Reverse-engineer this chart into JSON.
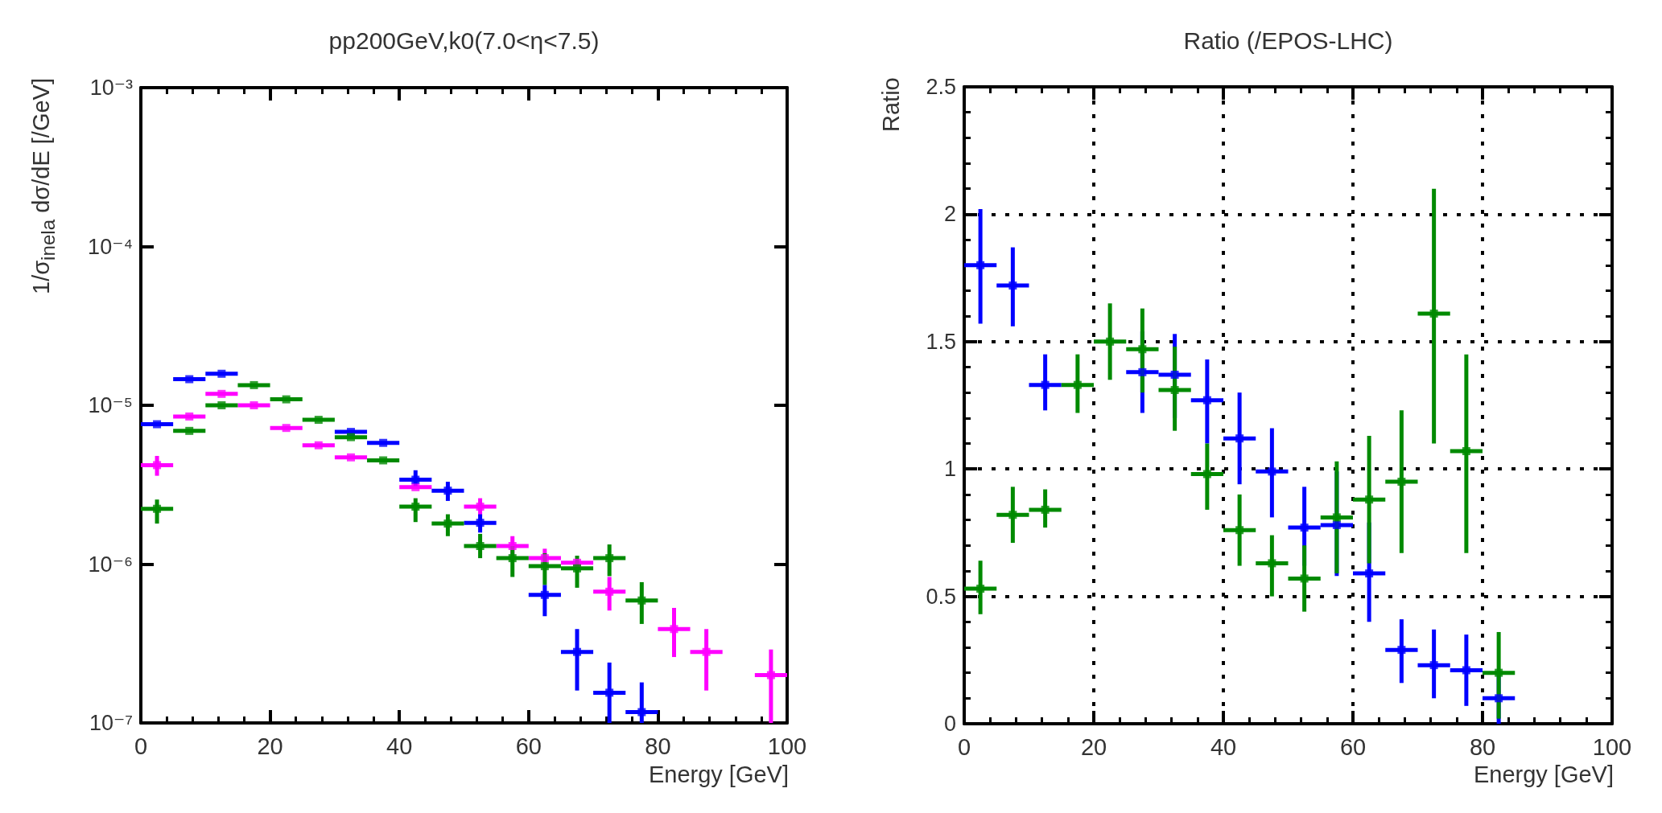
{
  "chart_data": [
    {
      "type": "scatter",
      "title": "pp200GeV,k0(7.0<η<7.5)",
      "xlabel": "Energy [GeV]",
      "ylabel": "1/σ$_{inela}$ dσ/dE [/GeV]",
      "log": true,
      "x": [
        2.5,
        7.5,
        12.5,
        17.5,
        22.5,
        27.5,
        32.5,
        37.5,
        42.5,
        47.5,
        52.5,
        57.5,
        62.5,
        67.5,
        72.5,
        77.5,
        82.5,
        87.5,
        92.5,
        97.5
      ],
      "xlim": [
        0,
        100
      ],
      "xticks": [
        0,
        20,
        40,
        60,
        80,
        100
      ],
      "ylim": [
        1e-07,
        0.001
      ],
      "yticks": [
        {
          "value": 1e-07,
          "label": "10⁻⁷"
        },
        {
          "value": 1e-06,
          "label": "10⁻⁶"
        },
        {
          "value": 1e-05,
          "label": "10⁻⁵"
        },
        {
          "value": 0.0001,
          "label": "10⁻⁴"
        },
        {
          "value": 0.001,
          "label": "10⁻³"
        }
      ],
      "series": [
        {
          "color": "#ff00ff",
          "xerrors": [
            2.5,
            2.5,
            2.5,
            2.5,
            2.5,
            2.5,
            2.5,
            null,
            2.5,
            null,
            2.5,
            2.5,
            2.5,
            2.5,
            2.5,
            null,
            2.5,
            2.5,
            null,
            2.5
          ],
          "values": [
            4.2e-06,
            8.5e-06,
            1.18e-05,
            1e-05,
            7.2e-06,
            5.6e-06,
            4.7e-06,
            null,
            3.05e-06,
            null,
            2.3e-06,
            1.3e-06,
            1.09e-06,
            1.02e-06,
            6.7e-07,
            null,
            3.9e-07,
            2.8e-07,
            null,
            2e-07
          ],
          "errors": [
            [
              3.6e-06,
              4.8e-06
            ],
            null,
            null,
            null,
            null,
            null,
            null,
            null,
            null,
            null,
            [
              2e-06,
              2.6e-06
            ],
            [
              1.1e-06,
              1.5e-06
            ],
            [
              9.5e-07,
              1.25e-06
            ],
            null,
            [
              5.1e-07,
              8.3e-07
            ],
            null,
            [
              2.6e-07,
              5.3e-07
            ],
            [
              1.6e-07,
              3.9e-07
            ],
            null,
            [
              1e-07,
              2.9e-07
            ]
          ]
        },
        {
          "color": "#0000ff",
          "xerrors": [
            2.5,
            2.5,
            2.5,
            null,
            null,
            null,
            2.5,
            2.5,
            2.5,
            2.5,
            2.5,
            null,
            2.5,
            2.5,
            2.5,
            2.5,
            null,
            null,
            null,
            null
          ],
          "values": [
            7.6e-06,
            1.46e-05,
            1.58e-05,
            null,
            null,
            null,
            6.8e-06,
            5.8e-06,
            3.4e-06,
            2.9e-06,
            1.82e-06,
            null,
            6.4e-07,
            2.8e-07,
            1.55e-07,
            1.17e-07,
            null,
            null,
            null,
            null
          ],
          "errors": [
            null,
            null,
            null,
            null,
            null,
            null,
            null,
            null,
            [
              3.1e-06,
              3.9e-06
            ],
            [
              2.5e-06,
              3.3e-06
            ],
            [
              1.58e-06,
              2.06e-06
            ],
            null,
            [
              4.7e-07,
              7.4e-07
            ],
            [
              1.6e-07,
              3.9e-07
            ],
            [
              1e-07,
              2.4e-07
            ],
            [
              1e-07,
              1.8e-07
            ],
            null,
            null,
            null,
            null
          ]
        },
        {
          "color": "#008a00",
          "xerrors": [
            2.5,
            2.5,
            2.5,
            2.5,
            2.5,
            2.5,
            2.5,
            2.5,
            2.5,
            2.5,
            2.5,
            2.5,
            2.5,
            2.5,
            2.5,
            2.5,
            null,
            null,
            null,
            null
          ],
          "values": [
            2.23e-06,
            6.9e-06,
            1e-05,
            1.34e-05,
            1.09e-05,
            8.1e-06,
            6.3e-06,
            4.5e-06,
            2.3e-06,
            1.8e-06,
            1.3e-06,
            1.09e-06,
            9.7e-07,
            9.4e-07,
            1.09e-06,
            5.9e-07,
            null,
            null,
            null,
            null
          ],
          "errors": [
            [
              1.8e-06,
              2.55e-06
            ],
            null,
            null,
            null,
            null,
            null,
            null,
            null,
            [
              1.84e-06,
              2.6e-06
            ],
            [
              1.5e-06,
              2.06e-06
            ],
            [
              1.09e-06,
              1.55e-06
            ],
            [
              8.3e-07,
              1.3e-06
            ],
            [
              7.4e-07,
              1.17e-06
            ],
            [
              7.1e-07,
              1.13e-06
            ],
            [
              8.4e-07,
              1.33e-06
            ],
            [
              4.2e-07,
              7.7e-07
            ],
            null,
            null,
            null,
            null
          ]
        }
      ]
    },
    {
      "type": "scatter",
      "title": "Ratio (/EPOS-LHC)",
      "xlabel": "Energy [GeV]",
      "ylabel": "Ratio",
      "grid": true,
      "x": [
        2.5,
        7.5,
        12.5,
        17.5,
        22.5,
        27.5,
        32.5,
        37.5,
        42.5,
        47.5,
        52.5,
        57.5,
        62.5,
        67.5,
        72.5,
        77.5,
        82.5
      ],
      "xlim": [
        0,
        100
      ],
      "xticks": [
        0,
        20,
        40,
        60,
        80,
        100
      ],
      "ylim": [
        0,
        2.5
      ],
      "yticks": [
        0,
        0.5,
        1,
        1.5,
        2,
        2.5
      ],
      "series": [
        {
          "color": "#0000ff",
          "xerrors": [
            2.5,
            2.5,
            2.5,
            null,
            null,
            2.5,
            2.5,
            2.5,
            2.5,
            2.5,
            2.5,
            2.5,
            2.5,
            2.5,
            2.5,
            2.5,
            2.5
          ],
          "values": [
            1.8,
            1.72,
            1.33,
            null,
            null,
            1.38,
            1.37,
            1.27,
            1.12,
            0.99,
            0.77,
            0.78,
            0.59,
            0.29,
            0.23,
            0.21,
            0.1
          ],
          "errors": [
            [
              1.57,
              2.02
            ],
            [
              1.56,
              1.87
            ],
            [
              1.23,
              1.45
            ],
            null,
            null,
            [
              1.22,
              1.54
            ],
            [
              1.2,
              1.53
            ],
            [
              1.1,
              1.43
            ],
            [
              0.94,
              1.3
            ],
            [
              0.81,
              1.16
            ],
            [
              0.62,
              0.93
            ],
            [
              0.58,
              0.99
            ],
            [
              0.4,
              0.79
            ],
            [
              0.16,
              0.41
            ],
            [
              0.1,
              0.37
            ],
            [
              0.07,
              0.35
            ],
            [
              0,
              0.2
            ]
          ]
        },
        {
          "color": "#008a00",
          "xerrors": [
            2.5,
            2.5,
            2.5,
            2.5,
            2.5,
            2.5,
            2.5,
            2.5,
            2.5,
            2.5,
            2.5,
            2.5,
            2.5,
            2.5,
            2.5,
            2.5,
            2.5
          ],
          "values": [
            0.53,
            0.82,
            0.84,
            1.33,
            1.5,
            1.47,
            1.31,
            0.98,
            0.76,
            0.63,
            0.57,
            0.81,
            0.88,
            0.95,
            1.61,
            1.07,
            0.2
          ],
          "errors": [
            [
              0.43,
              0.64
            ],
            [
              0.71,
              0.93
            ],
            [
              0.77,
              0.92
            ],
            [
              1.22,
              1.45
            ],
            [
              1.35,
              1.65
            ],
            [
              1.3,
              1.63
            ],
            [
              1.15,
              1.48
            ],
            [
              0.84,
              1.1
            ],
            [
              0.62,
              0.9
            ],
            [
              0.5,
              0.74
            ],
            [
              0.44,
              0.7
            ],
            [
              0.59,
              1.03
            ],
            [
              0.63,
              1.13
            ],
            [
              0.67,
              1.23
            ],
            [
              1.1,
              2.1
            ],
            [
              0.67,
              1.45
            ],
            [
              0.02,
              0.36
            ]
          ]
        }
      ]
    }
  ]
}
